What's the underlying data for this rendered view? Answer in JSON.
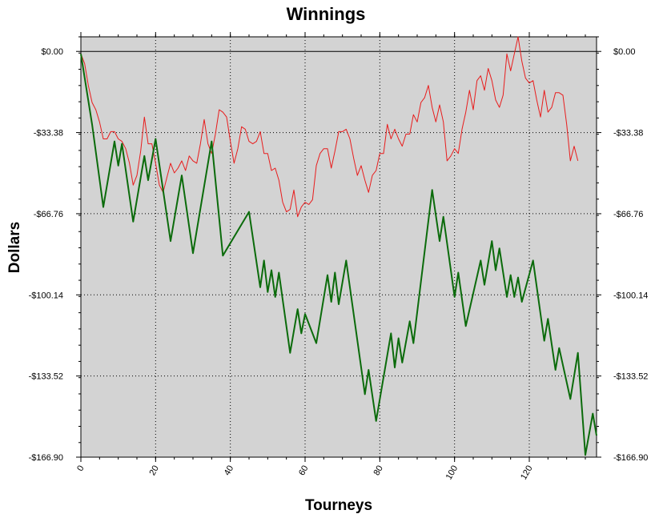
{
  "chart_data": {
    "type": "line",
    "title": "Winnings",
    "xlabel": "Tourneys",
    "ylabel": "Dollars",
    "xlim": [
      0,
      138
    ],
    "ylim": [
      -166.9,
      6
    ],
    "x_ticks": [
      "0",
      "20",
      "40",
      "60",
      "80",
      "100",
      "120"
    ],
    "y_ticks": [
      "$0.00",
      "-$33.38",
      "-$66.76",
      "-$100.14",
      "-$133.52",
      "-$166.90"
    ],
    "grid": true,
    "colors": {
      "background": "#d3d3d3",
      "series_1": "#e81c1c",
      "series_2": "#0b6b0b",
      "zero_line": "#000000"
    },
    "series": [
      {
        "values": [
          [
            0,
            -1
          ],
          [
            1,
            -5
          ],
          [
            2,
            -14
          ],
          [
            3,
            -21
          ],
          [
            4,
            -24
          ],
          [
            5,
            -29
          ],
          [
            6,
            -36
          ],
          [
            7,
            -36
          ],
          [
            8,
            -33
          ],
          [
            9,
            -33
          ],
          [
            10,
            -36
          ],
          [
            11,
            -37
          ],
          [
            12,
            -40
          ],
          [
            13,
            -46
          ],
          [
            14,
            -55
          ],
          [
            15,
            -51
          ],
          [
            16,
            -41
          ],
          [
            17,
            -27
          ],
          [
            18,
            -38
          ],
          [
            19,
            -38
          ],
          [
            20,
            -46
          ],
          [
            21,
            -55
          ],
          [
            22,
            -58
          ],
          [
            23,
            -52
          ],
          [
            24,
            -46
          ],
          [
            25,
            -50
          ],
          [
            26,
            -48
          ],
          [
            27,
            -45
          ],
          [
            28,
            -49
          ],
          [
            29,
            -43
          ],
          [
            30,
            -45
          ],
          [
            31,
            -46
          ],
          [
            32,
            -38
          ],
          [
            33,
            -28
          ],
          [
            34,
            -38
          ],
          [
            35,
            -42
          ],
          [
            36,
            -34
          ],
          [
            37,
            -24
          ],
          [
            38,
            -25
          ],
          [
            39,
            -27
          ],
          [
            40,
            -37
          ],
          [
            41,
            -46
          ],
          [
            42,
            -40
          ],
          [
            43,
            -31
          ],
          [
            44,
            -32
          ],
          [
            45,
            -37
          ],
          [
            46,
            -38
          ],
          [
            47,
            -37
          ],
          [
            48,
            -33
          ],
          [
            49,
            -42
          ],
          [
            50,
            -42
          ],
          [
            51,
            -49
          ],
          [
            52,
            -48
          ],
          [
            53,
            -53
          ],
          [
            54,
            -62
          ],
          [
            55,
            -66
          ],
          [
            56,
            -65
          ],
          [
            57,
            -57
          ],
          [
            58,
            -68
          ],
          [
            59,
            -64
          ],
          [
            60,
            -62
          ],
          [
            61,
            -63
          ],
          [
            62,
            -61
          ],
          [
            63,
            -47
          ],
          [
            64,
            -42
          ],
          [
            65,
            -40
          ],
          [
            66,
            -40
          ],
          [
            67,
            -48
          ],
          [
            68,
            -41
          ],
          [
            69,
            -33
          ],
          [
            70,
            -33
          ],
          [
            71,
            -32
          ],
          [
            72,
            -36
          ],
          [
            73,
            -44
          ],
          [
            74,
            -51
          ],
          [
            75,
            -47
          ],
          [
            76,
            -53
          ],
          [
            77,
            -58
          ],
          [
            78,
            -51
          ],
          [
            79,
            -49
          ],
          [
            80,
            -42
          ],
          [
            81,
            -42
          ],
          [
            82,
            -30
          ],
          [
            83,
            -36
          ],
          [
            84,
            -32
          ],
          [
            85,
            -36
          ],
          [
            86,
            -39
          ],
          [
            87,
            -34
          ],
          [
            88,
            -34
          ],
          [
            89,
            -26
          ],
          [
            90,
            -29
          ],
          [
            91,
            -21
          ],
          [
            92,
            -19
          ],
          [
            93,
            -14
          ],
          [
            94,
            -23
          ],
          [
            95,
            -29
          ],
          [
            96,
            -22
          ],
          [
            97,
            -29
          ],
          [
            98,
            -45
          ],
          [
            99,
            -43
          ],
          [
            100,
            -40
          ],
          [
            101,
            -42
          ],
          [
            102,
            -32
          ],
          [
            103,
            -25
          ],
          [
            104,
            -16
          ],
          [
            105,
            -24
          ],
          [
            106,
            -12
          ],
          [
            107,
            -10
          ],
          [
            108,
            -16
          ],
          [
            109,
            -7
          ],
          [
            110,
            -12
          ],
          [
            111,
            -20
          ],
          [
            112,
            -23
          ],
          [
            113,
            -18
          ],
          [
            114,
            -1
          ],
          [
            115,
            -8
          ],
          [
            116,
            -1
          ],
          [
            117,
            6
          ],
          [
            118,
            -4
          ],
          [
            119,
            -11
          ],
          [
            120,
            -13
          ],
          [
            121,
            -12
          ],
          [
            122,
            -20
          ],
          [
            123,
            -27
          ],
          [
            124,
            -16
          ],
          [
            125,
            -25
          ],
          [
            126,
            -23
          ],
          [
            127,
            -17
          ],
          [
            128,
            -17
          ],
          [
            129,
            -18
          ],
          [
            130,
            -30
          ],
          [
            131,
            -45
          ],
          [
            132,
            -39
          ],
          [
            133,
            -45
          ]
        ]
      },
      {
        "values": [
          [
            0,
            -1
          ],
          [
            3,
            -30
          ],
          [
            6,
            -64
          ],
          [
            9,
            -37
          ],
          [
            10,
            -47
          ],
          [
            11,
            -38
          ],
          [
            14,
            -70
          ],
          [
            17,
            -43
          ],
          [
            18,
            -53
          ],
          [
            20,
            -36
          ],
          [
            24,
            -78
          ],
          [
            27,
            -51
          ],
          [
            30,
            -83
          ],
          [
            35,
            -37
          ],
          [
            38,
            -84
          ],
          [
            45,
            -66
          ],
          [
            48,
            -97
          ],
          [
            49,
            -86
          ],
          [
            50,
            -99
          ],
          [
            51,
            -90
          ],
          [
            52,
            -101
          ],
          [
            53,
            -91
          ],
          [
            56,
            -124
          ],
          [
            58,
            -106
          ],
          [
            59,
            -116
          ],
          [
            60,
            -108
          ],
          [
            63,
            -120
          ],
          [
            66,
            -92
          ],
          [
            67,
            -103
          ],
          [
            68,
            -91
          ],
          [
            69,
            -104
          ],
          [
            71,
            -86
          ],
          [
            76,
            -141
          ],
          [
            77,
            -131
          ],
          [
            79,
            -152
          ],
          [
            83,
            -116
          ],
          [
            84,
            -130
          ],
          [
            85,
            -118
          ],
          [
            86,
            -128
          ],
          [
            88,
            -111
          ],
          [
            89,
            -120
          ],
          [
            94,
            -57
          ],
          [
            96,
            -78
          ],
          [
            97,
            -68
          ],
          [
            100,
            -101
          ],
          [
            101,
            -91
          ],
          [
            103,
            -113
          ],
          [
            107,
            -86
          ],
          [
            108,
            -96
          ],
          [
            110,
            -78
          ],
          [
            111,
            -90
          ],
          [
            112,
            -81
          ],
          [
            114,
            -101
          ],
          [
            115,
            -92
          ],
          [
            116,
            -101
          ],
          [
            117,
            -93
          ],
          [
            118,
            -103
          ],
          [
            121,
            -86
          ],
          [
            124,
            -119
          ],
          [
            125,
            -110
          ],
          [
            127,
            -131
          ],
          [
            128,
            -122
          ],
          [
            131,
            -143
          ],
          [
            133,
            -124
          ],
          [
            135,
            -166
          ],
          [
            137,
            -149
          ],
          [
            138,
            -158
          ]
        ]
      }
    ]
  }
}
